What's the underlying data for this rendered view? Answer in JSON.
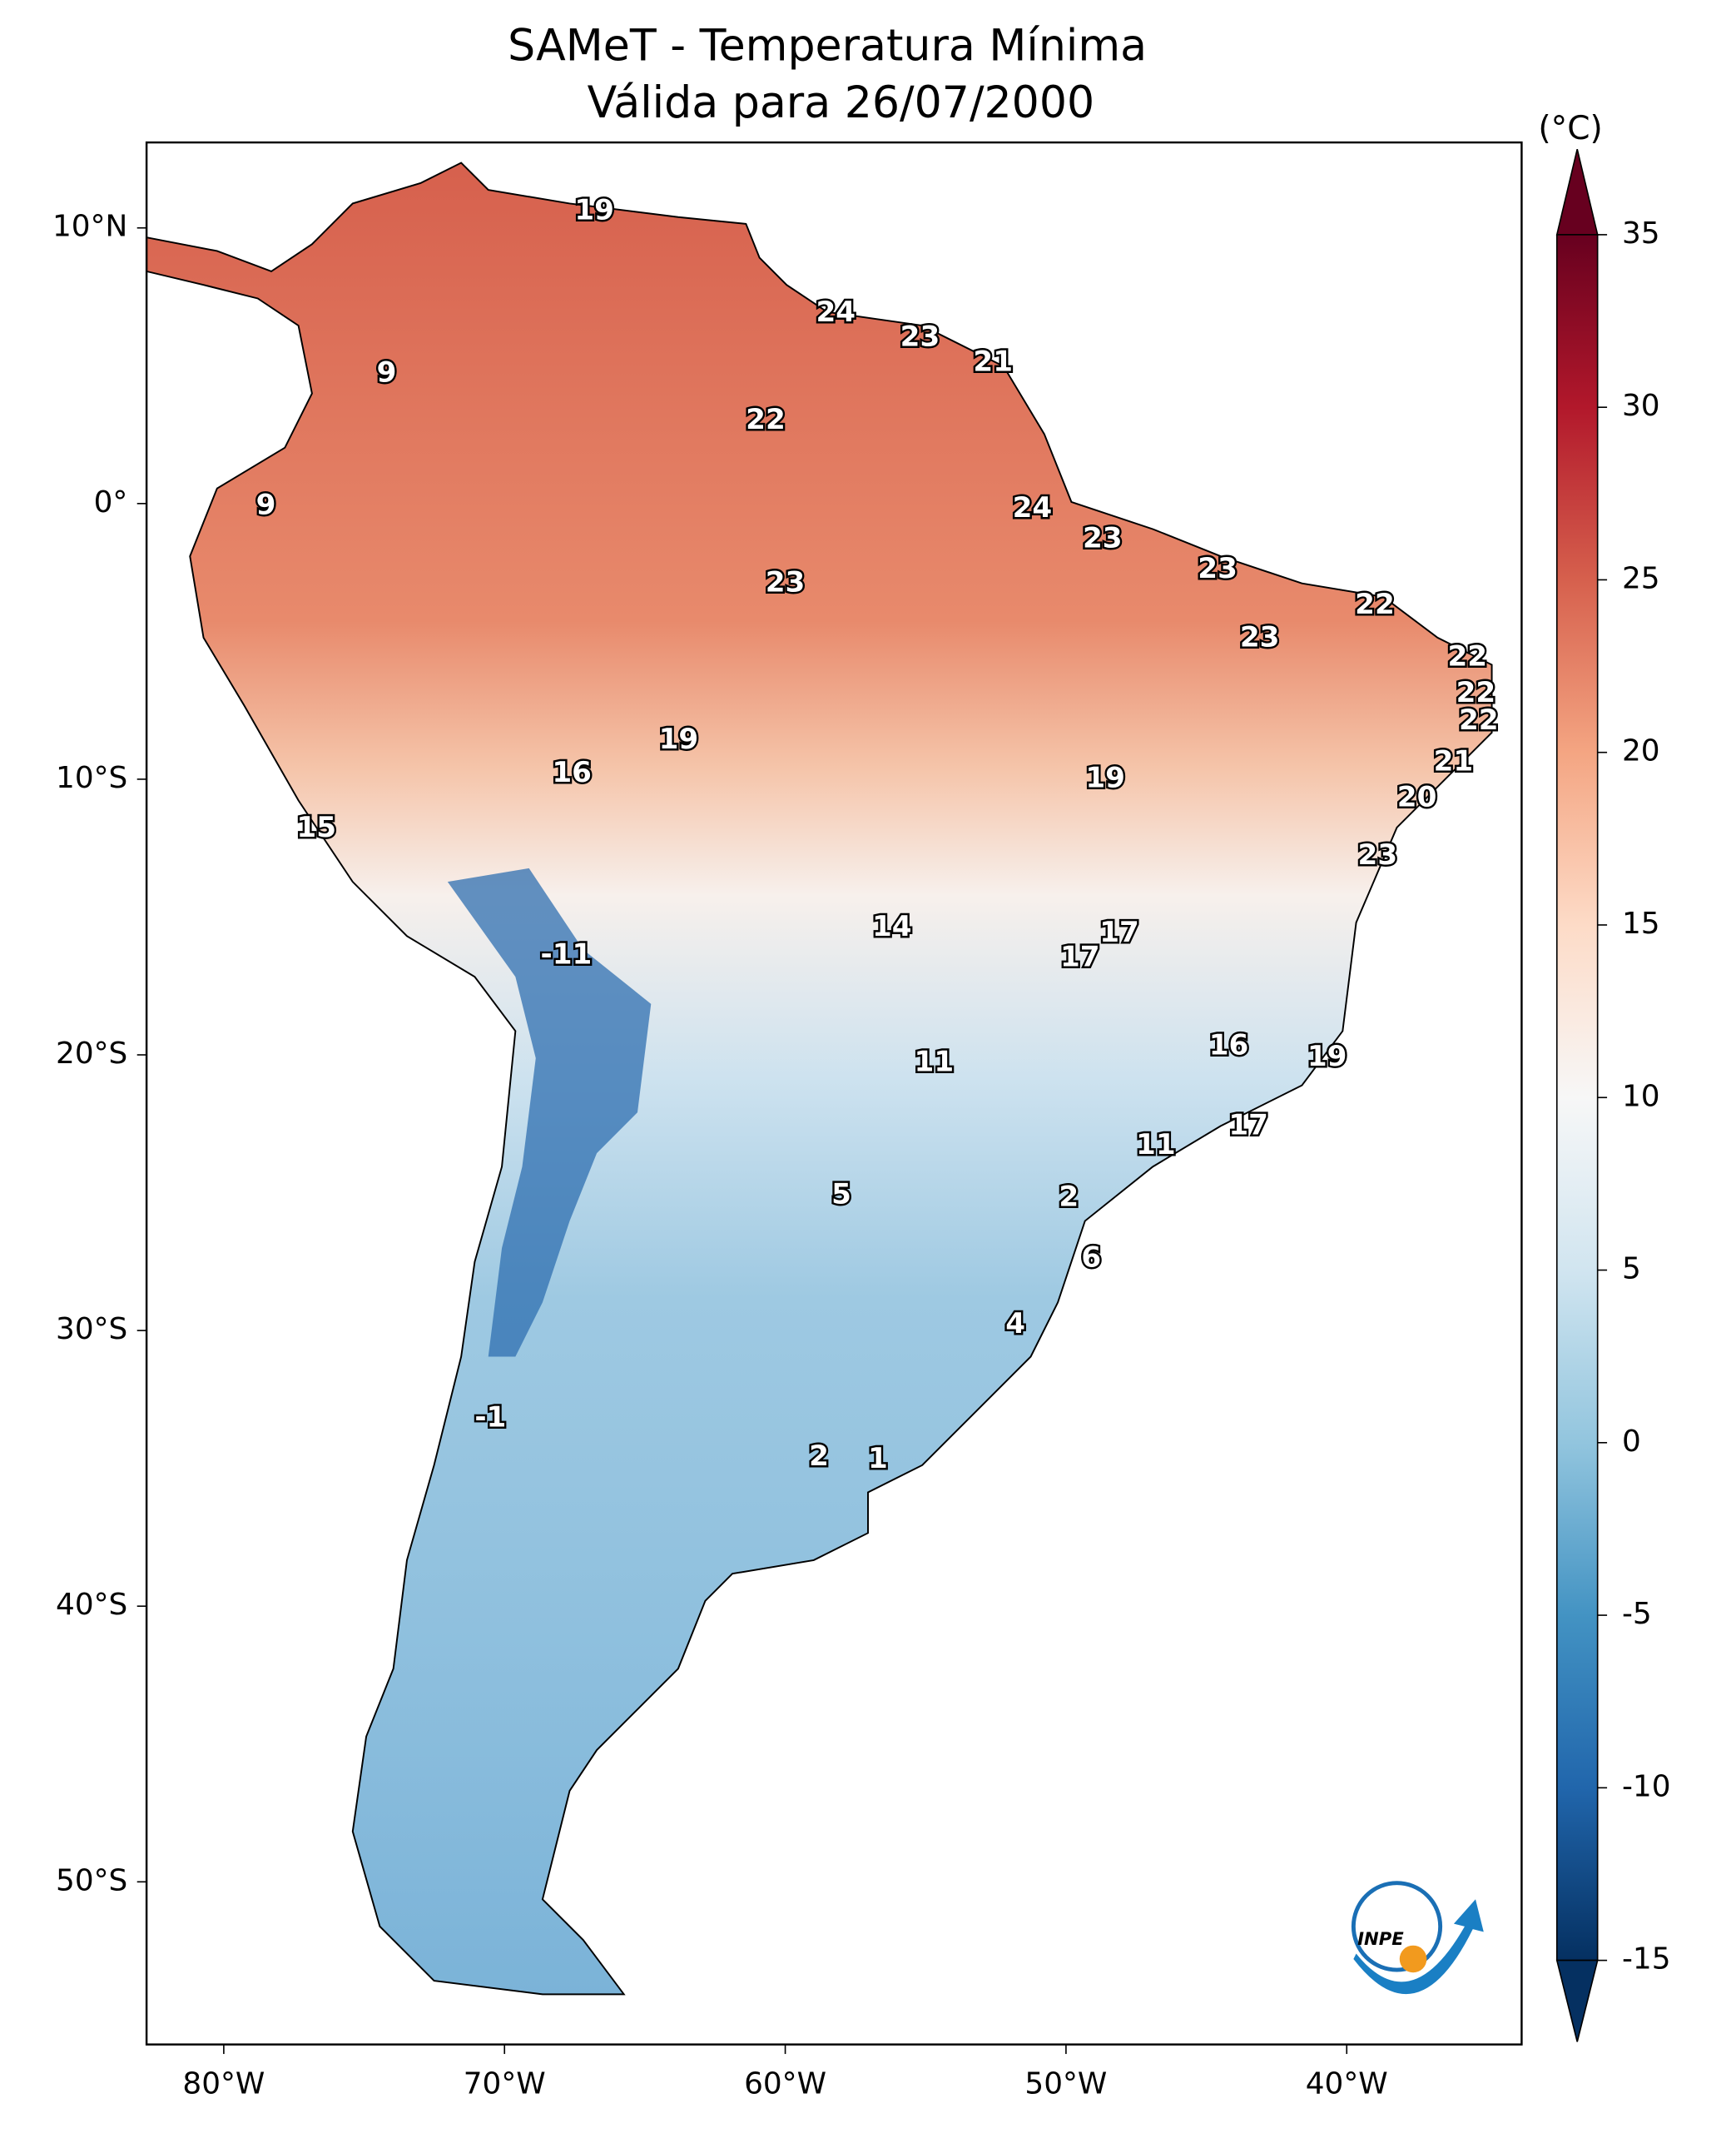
{
  "chart_data": {
    "type": "map",
    "title": "SAMeT - Temperatura Mínima",
    "subtitle": "Válida para 26/07/2000",
    "colorbar_label": "(°C)",
    "colorbar_lim": [
      -15,
      35
    ],
    "colorbar_ticks": [
      -15,
      -10,
      -5,
      0,
      5,
      10,
      15,
      20,
      25,
      30,
      35
    ],
    "xlim": [
      -82.75,
      -33.77
    ],
    "ylim": [
      -55.9,
      13.1
    ],
    "xticks": [
      {
        "value": -80,
        "label": "80°W"
      },
      {
        "value": -70,
        "label": "70°W"
      },
      {
        "value": -60,
        "label": "60°W"
      },
      {
        "value": -50,
        "label": "50°W"
      },
      {
        "value": -40,
        "label": "40°W"
      }
    ],
    "yticks": [
      {
        "value": 10,
        "label": "10°N"
      },
      {
        "value": 0,
        "label": "0°"
      },
      {
        "value": -10,
        "label": "10°S"
      },
      {
        "value": -20,
        "label": "20°S"
      },
      {
        "value": -30,
        "label": "30°S"
      },
      {
        "value": -40,
        "label": "40°S"
      },
      {
        "value": -50,
        "label": "50°S"
      }
    ],
    "labels": [
      {
        "lon": -66.8,
        "lat": 10.6,
        "value": 19
      },
      {
        "lon": -74.2,
        "lat": 4.7,
        "value": 9
      },
      {
        "lon": -58.2,
        "lat": 6.9,
        "value": 24
      },
      {
        "lon": -55.2,
        "lat": 6.0,
        "value": 23
      },
      {
        "lon": -52.6,
        "lat": 5.1,
        "value": 21
      },
      {
        "lon": -60.7,
        "lat": 3.0,
        "value": 22
      },
      {
        "lon": -78.5,
        "lat": -0.1,
        "value": 9
      },
      {
        "lon": -51.2,
        "lat": -0.2,
        "value": 24
      },
      {
        "lon": -48.7,
        "lat": -1.3,
        "value": 23
      },
      {
        "lon": -60.0,
        "lat": -2.9,
        "value": 23
      },
      {
        "lon": -44.6,
        "lat": -2.4,
        "value": 23
      },
      {
        "lon": -39.0,
        "lat": -3.7,
        "value": 22
      },
      {
        "lon": -43.1,
        "lat": -4.9,
        "value": 23
      },
      {
        "lon": -35.7,
        "lat": -5.6,
        "value": 22
      },
      {
        "lon": -35.4,
        "lat": -6.9,
        "value": 22
      },
      {
        "lon": -35.3,
        "lat": -7.9,
        "value": 22
      },
      {
        "lon": -63.8,
        "lat": -8.6,
        "value": 19
      },
      {
        "lon": -67.6,
        "lat": -9.8,
        "value": 16
      },
      {
        "lon": -48.6,
        "lat": -10.0,
        "value": 19
      },
      {
        "lon": -36.2,
        "lat": -9.4,
        "value": 21
      },
      {
        "lon": -37.5,
        "lat": -10.7,
        "value": 20
      },
      {
        "lon": -76.7,
        "lat": -11.8,
        "value": 15
      },
      {
        "lon": -38.9,
        "lat": -12.8,
        "value": 23
      },
      {
        "lon": -56.2,
        "lat": -15.4,
        "value": 14
      },
      {
        "lon": -48.1,
        "lat": -15.6,
        "value": 17
      },
      {
        "lon": -49.5,
        "lat": -16.5,
        "value": 17
      },
      {
        "lon": -67.8,
        "lat": -16.4,
        "value": -11
      },
      {
        "lon": -44.2,
        "lat": -19.7,
        "value": 16
      },
      {
        "lon": -40.7,
        "lat": -20.1,
        "value": 19
      },
      {
        "lon": -54.7,
        "lat": -20.3,
        "value": 11
      },
      {
        "lon": -43.5,
        "lat": -22.6,
        "value": 17
      },
      {
        "lon": -46.8,
        "lat": -23.3,
        "value": 11
      },
      {
        "lon": -58.0,
        "lat": -25.1,
        "value": 5
      },
      {
        "lon": -49.9,
        "lat": -25.2,
        "value": 2
      },
      {
        "lon": -49.1,
        "lat": -27.4,
        "value": 6
      },
      {
        "lon": -51.8,
        "lat": -29.8,
        "value": 4
      },
      {
        "lon": -70.5,
        "lat": -33.2,
        "value": -1
      },
      {
        "lon": -58.8,
        "lat": -34.6,
        "value": 2
      },
      {
        "lon": -56.7,
        "lat": -34.7,
        "value": 1
      }
    ],
    "logo_text": "INPE"
  }
}
